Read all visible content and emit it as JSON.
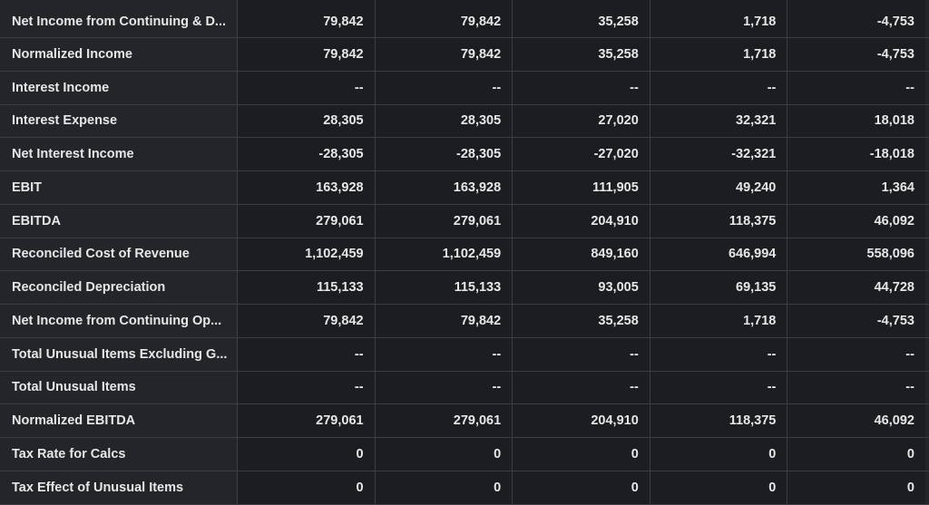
{
  "rows": [
    {
      "label": "Net Income from Continuing & D...",
      "values": [
        "79,842",
        "79,842",
        "35,258",
        "1,718",
        "-4,753"
      ]
    },
    {
      "label": "Normalized Income",
      "values": [
        "79,842",
        "79,842",
        "35,258",
        "1,718",
        "-4,753"
      ]
    },
    {
      "label": "Interest Income",
      "values": [
        "--",
        "--",
        "--",
        "--",
        "--"
      ]
    },
    {
      "label": "Interest Expense",
      "values": [
        "28,305",
        "28,305",
        "27,020",
        "32,321",
        "18,018"
      ]
    },
    {
      "label": "Net Interest Income",
      "values": [
        "-28,305",
        "-28,305",
        "-27,020",
        "-32,321",
        "-18,018"
      ]
    },
    {
      "label": "EBIT",
      "values": [
        "163,928",
        "163,928",
        "111,905",
        "49,240",
        "1,364"
      ]
    },
    {
      "label": "EBITDA",
      "values": [
        "279,061",
        "279,061",
        "204,910",
        "118,375",
        "46,092"
      ]
    },
    {
      "label": "Reconciled Cost of Revenue",
      "values": [
        "1,102,459",
        "1,102,459",
        "849,160",
        "646,994",
        "558,096"
      ]
    },
    {
      "label": "Reconciled Depreciation",
      "values": [
        "115,133",
        "115,133",
        "93,005",
        "69,135",
        "44,728"
      ]
    },
    {
      "label": "Net Income from Continuing Op...",
      "values": [
        "79,842",
        "79,842",
        "35,258",
        "1,718",
        "-4,753"
      ]
    },
    {
      "label": "Total Unusual Items Excluding G...",
      "values": [
        "--",
        "--",
        "--",
        "--",
        "--"
      ]
    },
    {
      "label": "Total Unusual Items",
      "values": [
        "--",
        "--",
        "--",
        "--",
        "--"
      ]
    },
    {
      "label": "Normalized EBITDA",
      "values": [
        "279,061",
        "279,061",
        "204,910",
        "118,375",
        "46,092"
      ]
    },
    {
      "label": "Tax Rate for Calcs",
      "values": [
        "0",
        "0",
        "0",
        "0",
        "0"
      ]
    },
    {
      "label": "Tax Effect of Unusual Items",
      "values": [
        "0",
        "0",
        "0",
        "0",
        "0"
      ]
    }
  ]
}
